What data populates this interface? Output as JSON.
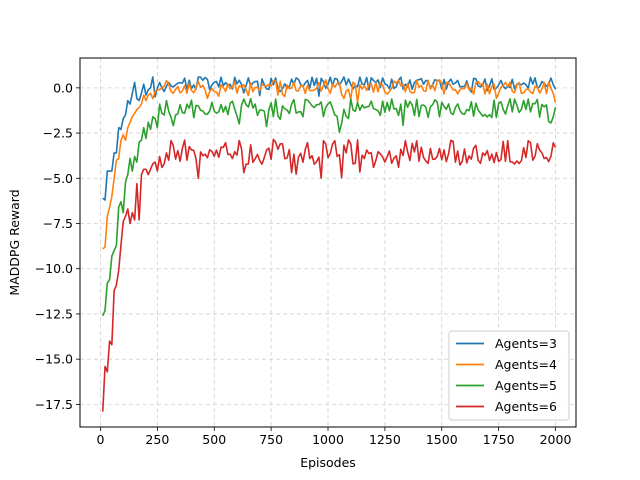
{
  "chart_data": {
    "type": "line",
    "title": "",
    "xlabel": "Episodes",
    "ylabel": "MADDPG Reward",
    "xlim": [
      -90,
      2090
    ],
    "ylim": [
      -18.75,
      1.65
    ],
    "xticks": [
      0,
      250,
      500,
      750,
      1000,
      1250,
      1500,
      1750,
      2000
    ],
    "xtick_labels": [
      "0",
      "250",
      "500",
      "750",
      "1000",
      "1250",
      "1500",
      "1750",
      "2000"
    ],
    "yticks": [
      0.0,
      -2.5,
      -5.0,
      -7.5,
      -10.0,
      -12.5,
      -15.0,
      -17.5
    ],
    "ytick_labels": [
      "0.0",
      "−2.5",
      "−5.0",
      "−7.5",
      "−10.0",
      "−12.5",
      "−15.0",
      "−17.5"
    ],
    "grid": true,
    "grid_style": "dashed",
    "legend_position": "lower-right",
    "x_points": {
      "start": 10,
      "end": 2000,
      "step": 10
    },
    "series": [
      {
        "name": "Agents=3",
        "color": "#1f77b4",
        "plateau": 0.25,
        "amp": 0.35,
        "values_early": [
          -6.1,
          -6.2,
          -4.6,
          -4.6,
          -4.6,
          -3.6,
          -3.6,
          -2.2,
          -2.3,
          -1.7,
          -1.5,
          -0.7,
          -0.9,
          -0.3,
          0.3,
          -0.6,
          -0.7,
          -0.3,
          0.2,
          -0.4,
          -0.1,
          0.0,
          0.6,
          -0.5,
          0.0,
          0.3,
          0.0,
          -0.2,
          0.1,
          0.3
        ]
      },
      {
        "name": "Agents=4",
        "color": "#ff7f0e",
        "plateau": 0.05,
        "amp": 0.4,
        "values_early": [
          -8.9,
          -8.8,
          -7.1,
          -6.6,
          -6.0,
          -5.0,
          -4.0,
          -3.9,
          -2.9,
          -2.6,
          -2.9,
          -2.2,
          -1.9,
          -1.6,
          -1.4,
          -1.2,
          -1.1,
          -0.9,
          -0.4,
          -0.7,
          -0.4,
          -0.3,
          -0.6,
          -0.2,
          -0.1,
          -0.1,
          0.0,
          0.1,
          0.4,
          0.2
        ]
      },
      {
        "name": "Agents=5",
        "color": "#2ca02c",
        "plateau": -1.15,
        "amp": 0.55,
        "values_early": [
          -12.6,
          -12.3,
          -10.8,
          -10.6,
          -9.3,
          -9.0,
          -8.7,
          -6.6,
          -6.3,
          -6.9,
          -5.2,
          -4.8,
          -3.9,
          -4.6,
          -3.8,
          -4.1,
          -3.0,
          -2.9,
          -2.2,
          -2.8,
          -1.9,
          -2.3,
          -1.6,
          -1.7,
          -2.2,
          -0.9,
          -1.4,
          -1.5,
          -0.7,
          -1.3
        ]
      },
      {
        "name": "Agents=6",
        "color": "#d62728",
        "plateau": -3.55,
        "amp": 0.7,
        "values_early": [
          -17.9,
          -15.4,
          -15.7,
          -14.0,
          -14.2,
          -11.2,
          -10.9,
          -10.1,
          -8.7,
          -7.4,
          -7.1,
          -6.7,
          -7.5,
          -6.9,
          -7.3,
          -5.3,
          -7.3,
          -4.8,
          -4.5,
          -4.5,
          -4.8,
          -4.5,
          -4.2,
          -4.1,
          -4.6,
          -3.8,
          -4.4,
          -4.2,
          -3.6,
          -4.0
        ]
      }
    ]
  }
}
